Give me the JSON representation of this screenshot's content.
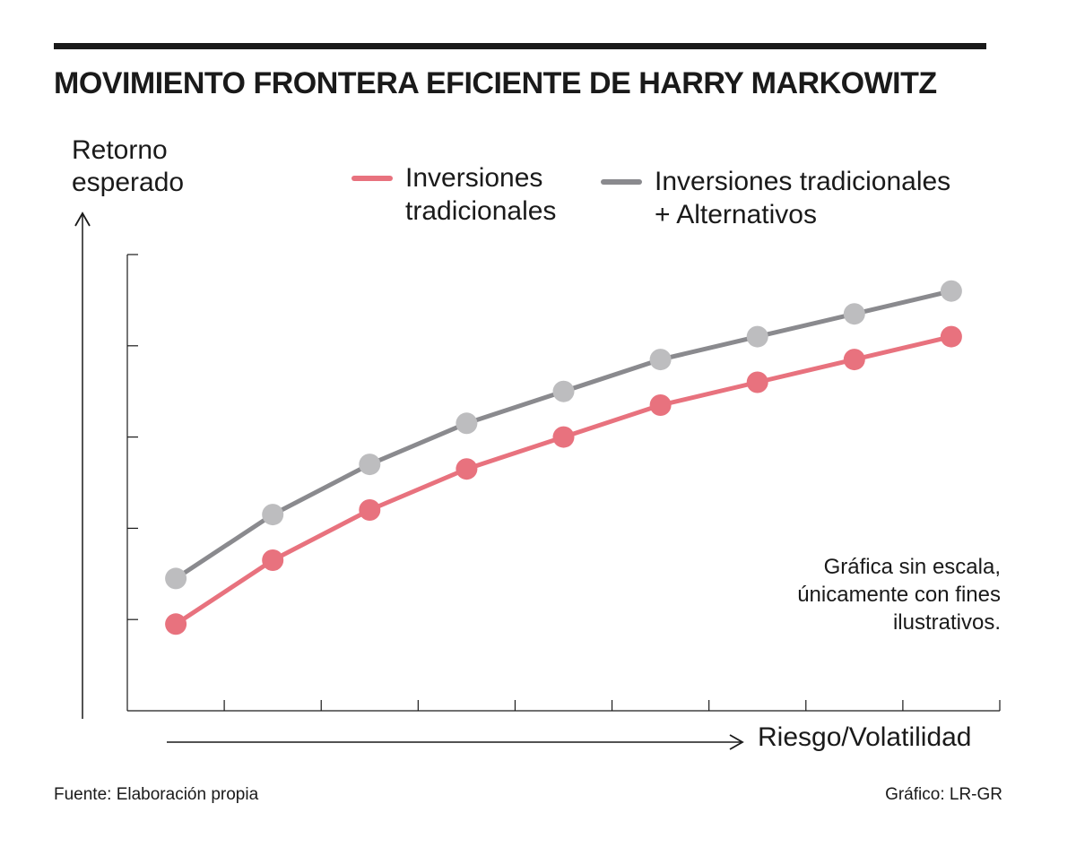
{
  "title": "MOVIMIENTO FRONTERA EFICIENTE DE HARRY MARKOWITZ",
  "colors": {
    "traditional": "#e8727e",
    "alternatives": "#8a8a8e",
    "alternatives_points": "#bdbdbf",
    "ink": "#1a1a1a"
  },
  "chart_data": {
    "type": "line",
    "title": "MOVIMIENTO FRONTERA EFICIENTE DE HARRY MARKOWITZ",
    "ylabel_lines": [
      "Retorno",
      "esperado"
    ],
    "xlabel": "Riesgo/Volatilidad",
    "x": [
      1,
      2,
      3,
      4,
      5,
      6,
      7,
      8,
      9
    ],
    "xlim": [
      0.5,
      9.5
    ],
    "ylim": [
      0,
      5
    ],
    "y_ticks": 5,
    "x_ticks": 9,
    "grid": false,
    "scale_note": "Gráfica sin escala, únicamente con fines ilustrativos.",
    "series": [
      {
        "name": "Inversiones tradicionales",
        "legend_lines": [
          "Inversiones",
          "tradicionales"
        ],
        "color": "#e8727e",
        "point_color": "#e8727e",
        "values": [
          0.95,
          1.65,
          2.2,
          2.65,
          3.0,
          3.35,
          3.6,
          3.85,
          4.1
        ]
      },
      {
        "name": "Inversiones tradicionales + Alternativos",
        "legend_lines": [
          "Inversiones tradicionales",
          "+ Alternativos"
        ],
        "color": "#8a8a8e",
        "point_color": "#bdbdbf",
        "values": [
          1.45,
          2.15,
          2.7,
          3.15,
          3.5,
          3.85,
          4.1,
          4.35,
          4.6
        ]
      }
    ]
  },
  "note_lines": [
    "Gráfica sin escala,",
    "únicamente con fines",
    "ilustrativos."
  ],
  "footer": {
    "source": "Fuente: Elaboración propia",
    "credit": "Gráfico: LR-GR"
  }
}
